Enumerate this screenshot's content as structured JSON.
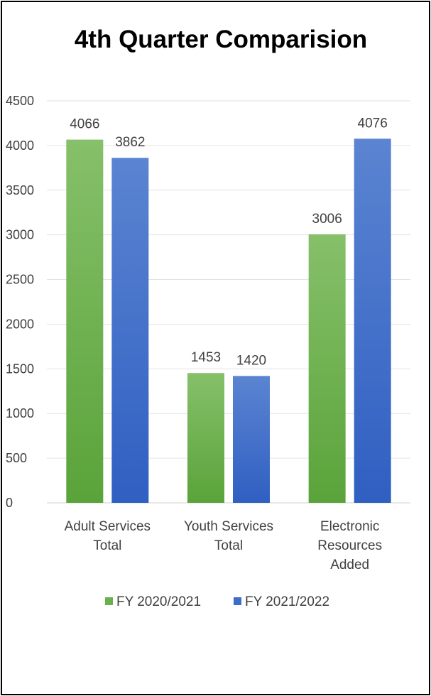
{
  "chart_data": {
    "type": "bar",
    "title": "4th Quarter Comparision",
    "categories": [
      [
        "Adult Services",
        "Total"
      ],
      [
        "Youth Services",
        "Total"
      ],
      [
        "Electronic",
        "Resources",
        "Added"
      ]
    ],
    "series": [
      {
        "name": "FY 2020/2021",
        "values": [
          4066,
          1453,
          3006
        ],
        "color": "#6ab04c"
      },
      {
        "name": "FY 2021/2022",
        "values": [
          3862,
          1420,
          4076
        ],
        "color": "#3d6cc9"
      }
    ],
    "ylim": [
      0,
      4500
    ],
    "yticks": [
      0,
      500,
      1000,
      1500,
      2000,
      2500,
      3000,
      3500,
      4000,
      4500
    ],
    "grid": true,
    "legend": "bottom"
  }
}
